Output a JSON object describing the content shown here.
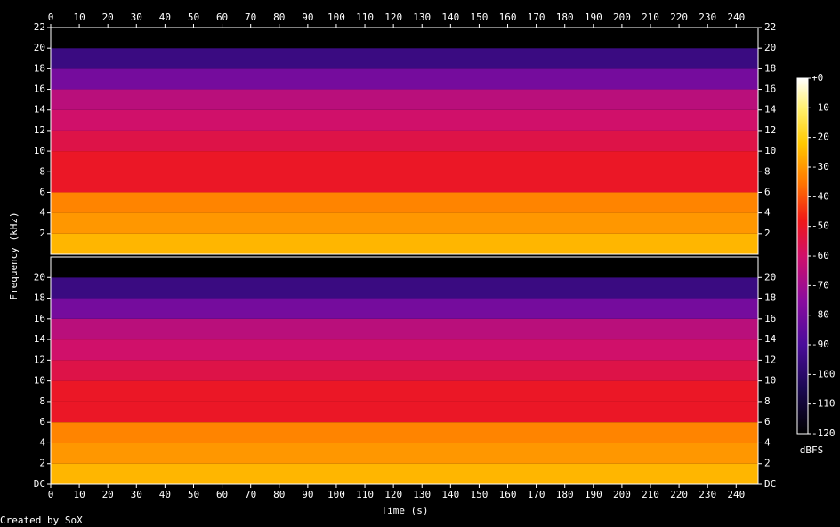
{
  "chart_data": {
    "type": "spectrogram",
    "xlabel": "Time (s)",
    "ylabel": "Frequency (kHz)",
    "footer": "Created by SoX",
    "xlim": [
      0,
      247.7
    ],
    "xticks": [
      0,
      10,
      20,
      30,
      40,
      50,
      60,
      70,
      80,
      90,
      100,
      110,
      120,
      130,
      140,
      150,
      160,
      170,
      180,
      190,
      200,
      210,
      220,
      230,
      240
    ],
    "ylim": [
      0,
      22
    ],
    "channels": [
      {
        "yticks": [
          2,
          4,
          6,
          8,
          10,
          12,
          14,
          16,
          18,
          20,
          22
        ],
        "bands": [
          0,
          2,
          4,
          6,
          8,
          10,
          12,
          14,
          16,
          18,
          20,
          22
        ],
        "levels": [
          -25,
          -30,
          -33,
          -50,
          -50,
          -55,
          -60,
          -65,
          -80,
          -95,
          -120
        ]
      },
      {
        "yticks": [
          {
            "value": 0,
            "label": "DC"
          },
          2,
          4,
          6,
          8,
          10,
          12,
          14,
          16,
          18,
          20
        ],
        "bands": [
          0,
          2,
          4,
          6,
          8,
          10,
          12,
          14,
          16,
          18,
          20,
          22
        ],
        "levels": [
          -25,
          -30,
          -33,
          -50,
          -50,
          -55,
          -60,
          -65,
          -80,
          -95,
          -120
        ]
      }
    ],
    "colorbar": {
      "label": "dBFS",
      "lim": [
        -120,
        0
      ],
      "ticks": [
        {
          "value": 0,
          "label": "+0"
        },
        -10,
        -20,
        -30,
        -40,
        -50,
        -60,
        -70,
        -80,
        -90,
        -100,
        -110,
        -120
      ],
      "colorscale": [
        [
          -120,
          "#000000"
        ],
        [
          -105,
          "#1a0850"
        ],
        [
          -90,
          "#4a0c9a"
        ],
        [
          -75,
          "#8a0c9e"
        ],
        [
          -60,
          "#d0106a"
        ],
        [
          -48,
          "#f01818"
        ],
        [
          -35,
          "#ff7800"
        ],
        [
          -22,
          "#ffc800"
        ],
        [
          -10,
          "#fff070"
        ],
        [
          0,
          "#ffffff"
        ]
      ]
    }
  }
}
